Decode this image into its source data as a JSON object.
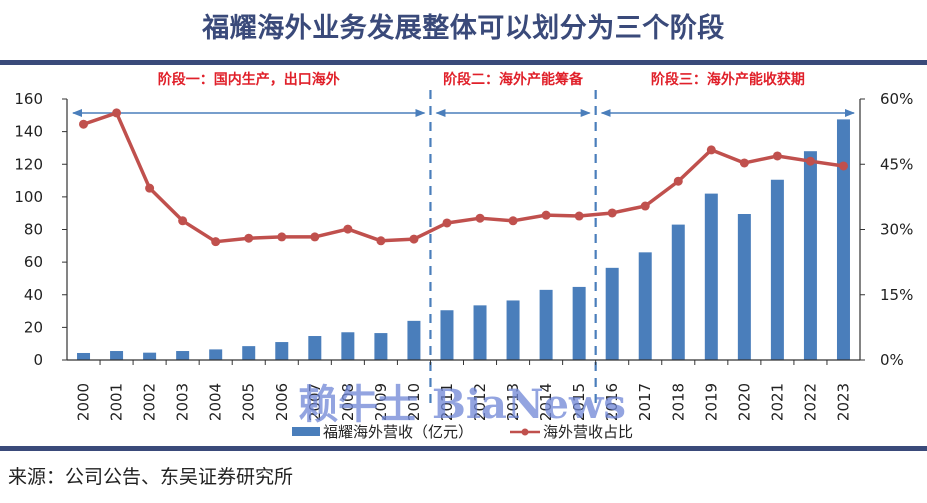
{
  "header": {
    "title": "福耀海外业务发展整体可以划分为三个阶段"
  },
  "footer": {
    "source": "来源：公司公告、东吴证券研究所"
  },
  "watermark": "赖牛士 BiaNews",
  "colors": {
    "bar": "#4a7ebb",
    "line": "#c0504d",
    "arrow": "#4a7ebb",
    "stage_text": "#e0202a",
    "rule": "#3a4a7a",
    "divider": "#4a7ebb"
  },
  "stages": [
    {
      "label": "阶段一：国内生产，出口海外",
      "from": "2000",
      "to": "2010"
    },
    {
      "label": "阶段二：海外产能筹备",
      "from": "2011",
      "to": "2015"
    },
    {
      "label": "阶段三：海外产能收获期",
      "from": "2016",
      "to": "2023"
    }
  ],
  "chart_data": {
    "type": "bar",
    "title": "福耀海外业务发展整体可以划分为三个阶段",
    "categories": [
      "2000",
      "2001",
      "2002",
      "2003",
      "2004",
      "2005",
      "2006",
      "2007",
      "2008",
      "2009",
      "2010",
      "2011",
      "2012",
      "2013",
      "2014",
      "2015",
      "2016",
      "2017",
      "2018",
      "2019",
      "2020",
      "2021",
      "2022",
      "2023"
    ],
    "series": [
      {
        "name": "福耀海外营收（亿元）",
        "type": "bar",
        "axis": "left",
        "values": [
          4.3,
          5.5,
          4.5,
          5.5,
          6.5,
          8.5,
          11.0,
          14.7,
          17.0,
          16.5,
          24.0,
          30.5,
          33.5,
          36.5,
          43.0,
          44.8,
          56.5,
          66.0,
          83.0,
          102.0,
          89.5,
          110.5,
          128.0,
          147.5
        ]
      },
      {
        "name": "海外营收占比",
        "type": "line",
        "axis": "right",
        "unit": "%",
        "values": [
          54.2,
          56.8,
          39.5,
          32.0,
          27.2,
          28.0,
          28.3,
          28.3,
          30.1,
          27.4,
          27.8,
          31.5,
          32.6,
          32.0,
          33.3,
          33.1,
          33.8,
          35.4,
          41.1,
          48.3,
          45.3,
          46.9,
          45.7,
          44.6
        ]
      }
    ],
    "left_axis": {
      "ylim": [
        0,
        160
      ],
      "ticks": [
        "0",
        "20",
        "40",
        "60",
        "80",
        "100",
        "120",
        "140",
        "160"
      ]
    },
    "right_axis": {
      "ylim": [
        0,
        60
      ],
      "ticks": [
        "0%",
        "15%",
        "30%",
        "45%",
        "60%"
      ]
    },
    "xlabel": "",
    "ylabel": "",
    "legend": {
      "placement": "bottom",
      "entries": [
        "福耀海外营收（亿元）",
        "海外营收占比"
      ]
    },
    "annotations": [
      "阶段一：国内生产，出口海外",
      "阶段二：海外产能筹备",
      "阶段三：海外产能收获期"
    ],
    "grid": false
  }
}
